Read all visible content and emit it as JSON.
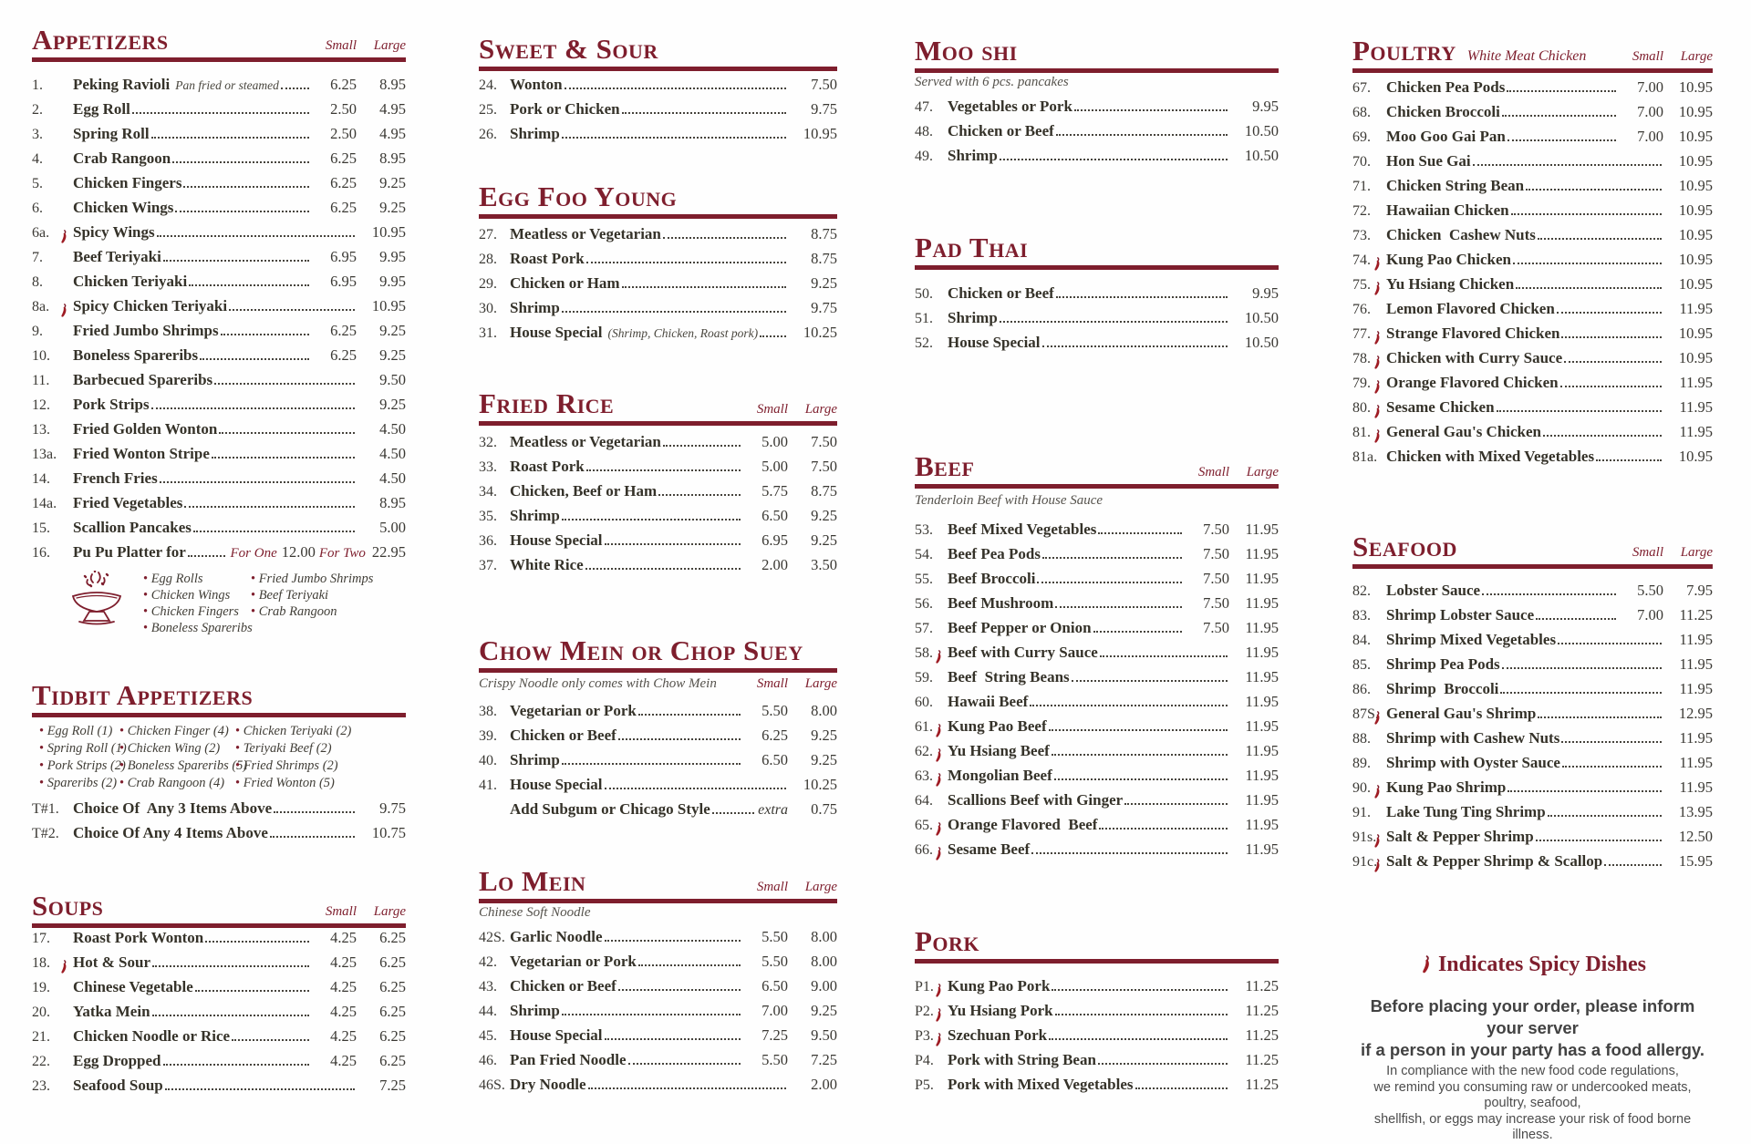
{
  "menu": {
    "sections": {
      "appetizers": {
        "title": "Appetizers",
        "labels_in": "header",
        "size_labels": [
          "Small",
          "Large"
        ],
        "items": [
          {
            "num": "1.",
            "name": "Peking Ravioli",
            "note": "Pan fried or steamed",
            "small": "6.25",
            "price": "8.95"
          },
          {
            "num": "2.",
            "name": "Egg Roll",
            "small": "2.50",
            "price": "4.95"
          },
          {
            "num": "3.",
            "name": "Spring Roll",
            "small": "2.50",
            "price": "4.95"
          },
          {
            "num": "4.",
            "name": "Crab Rangoon",
            "small": "6.25",
            "price": "8.95"
          },
          {
            "num": "5.",
            "name": "Chicken Fingers",
            "small": "6.25",
            "price": "9.25"
          },
          {
            "num": "6.",
            "name": "Chicken Wings",
            "small": "6.25",
            "price": "9.25"
          },
          {
            "num": "6a.",
            "spicy": true,
            "name": "Spicy Wings",
            "price": "10.95"
          },
          {
            "num": "7.",
            "name": "Beef Teriyaki",
            "small": "6.95",
            "price": "9.95"
          },
          {
            "num": "8.",
            "name": "Chicken Teriyaki",
            "small": "6.95",
            "price": "9.95"
          },
          {
            "num": "8a.",
            "spicy": true,
            "name": "Spicy Chicken Teriyaki",
            "price": "10.95"
          },
          {
            "num": "9.",
            "name": "Fried Jumbo Shrimps",
            "small": "6.25",
            "price": "9.25"
          },
          {
            "num": "10.",
            "name": "Boneless Spareribs",
            "small": "6.25",
            "price": "9.25"
          },
          {
            "num": "11.",
            "name": "Barbecued Spareribs",
            "price": "9.50"
          },
          {
            "num": "12.",
            "name": "Pork Strips",
            "price": "9.25"
          },
          {
            "num": "13.",
            "name": "Fried Golden Wonton",
            "price": "4.50"
          },
          {
            "num": "13a.",
            "name": "Fried Wonton Stripe",
            "price": "4.50"
          },
          {
            "num": "14.",
            "name": "French Fries",
            "price": "4.50"
          },
          {
            "num": "14a.",
            "name": "Fried Vegetables",
            "price": "8.95"
          },
          {
            "num": "15.",
            "name": "Scallion Pancakes",
            "price": "5.00"
          },
          {
            "num": "16.",
            "type": "pupu",
            "name": "Pu Pu Platter for",
            "for_one_label": "For One",
            "for_one_price": "12.00",
            "for_two_label": "For Two",
            "for_two_price": "22.95"
          }
        ],
        "pupu_bullets": {
          "col1": [
            "Egg Rolls",
            "Chicken Wings",
            "Chicken Fingers",
            "Boneless Spareribs"
          ],
          "col2": [
            "Fried Jumbo Shrimps",
            "Beef Teriyaki",
            "Crab Rangoon"
          ]
        }
      },
      "tidbit": {
        "title": "Tidbit Appetizers",
        "bullet_cols": [
          [
            "Egg Roll (1)",
            "Spring Roll (1)",
            "Pork Strips (2)",
            "Spareribs (2)"
          ],
          [
            "Chicken Finger (4)",
            "Chicken Wing (2)",
            "Boneless Spareribs (5)",
            "Crab Rangoon (4)"
          ],
          [
            "Chicken Teriyaki (2)",
            "Teriyaki Beef (2)",
            "Fried Shrimps (2)",
            "Fried Wonton (5)"
          ]
        ],
        "items": [
          {
            "num": "T#1.",
            "name": "Choice Of  Any 3 Items Above",
            "price": "9.75"
          },
          {
            "num": "T#2.",
            "name": "Choice Of Any 4 Items Above",
            "price": "10.75"
          }
        ]
      },
      "soups": {
        "title": "Soups",
        "labels_in": "header",
        "size_labels": [
          "Small",
          "Large"
        ],
        "items": [
          {
            "num": "17.",
            "name": "Roast Pork Wonton",
            "small": "4.25",
            "price": "6.25"
          },
          {
            "num": "18.",
            "spicy": true,
            "name": "Hot & Sour",
            "small": "4.25",
            "price": "6.25"
          },
          {
            "num": "19.",
            "name": "Chinese Vegetable",
            "small": "4.25",
            "price": "6.25"
          },
          {
            "num": "20.",
            "name": "Yatka Mein",
            "small": "4.25",
            "price": "6.25"
          },
          {
            "num": "21.",
            "name": "Chicken Noodle or Rice",
            "small": "4.25",
            "price": "6.25"
          },
          {
            "num": "22.",
            "name": "Egg Dropped",
            "small": "4.25",
            "price": "6.25"
          },
          {
            "num": "23.",
            "name": "Seafood Soup",
            "price": "7.25"
          }
        ]
      },
      "sweet_sour": {
        "title": "Sweet & Sour",
        "items": [
          {
            "num": "24.",
            "name": "Wonton",
            "price": "7.50"
          },
          {
            "num": "25.",
            "name": "Pork or Chicken",
            "price": "9.75"
          },
          {
            "num": "26.",
            "name": "Shrimp",
            "price": "10.95"
          }
        ]
      },
      "egg_foo_young": {
        "title": "Egg Foo Young",
        "items": [
          {
            "num": "27.",
            "name": "Meatless or Vegetarian",
            "price": "8.75"
          },
          {
            "num": "28.",
            "name": "Roast Pork",
            "price": "8.75"
          },
          {
            "num": "29.",
            "name": "Chicken or Ham",
            "price": "9.25"
          },
          {
            "num": "30.",
            "name": "Shrimp",
            "price": "9.75"
          },
          {
            "num": "31.",
            "name": "House Special",
            "note": "(Shrimp, Chicken, Roast pork)",
            "price": "10.25"
          }
        ]
      },
      "fried_rice": {
        "title": "Fried Rice",
        "labels_in": "header",
        "size_labels": [
          "Small",
          "Large"
        ],
        "items": [
          {
            "num": "32.",
            "name": "Meatless or Vegetarian",
            "small": "5.00",
            "price": "7.50"
          },
          {
            "num": "33.",
            "name": "Roast Pork",
            "small": "5.00",
            "price": "7.50"
          },
          {
            "num": "34.",
            "name": "Chicken, Beef or Ham",
            "small": "5.75",
            "price": "8.75"
          },
          {
            "num": "35.",
            "name": "Shrimp",
            "small": "6.50",
            "price": "9.25"
          },
          {
            "num": "36.",
            "name": "House Special",
            "small": "6.95",
            "price": "9.25"
          },
          {
            "num": "37.",
            "name": "White Rice",
            "small": "2.00",
            "price": "3.50"
          }
        ]
      },
      "chow_mein": {
        "title": "Chow Mein or Chop Suey",
        "labels_in": "note",
        "size_labels": [
          "Small",
          "Large"
        ],
        "note": "Crispy Noodle only comes with Chow Mein",
        "items": [
          {
            "num": "38.",
            "name": "Vegetarian or Pork",
            "small": "5.50",
            "price": "8.00"
          },
          {
            "num": "39.",
            "name": "Chicken or Beef",
            "small": "6.25",
            "price": "9.25"
          },
          {
            "num": "40.",
            "name": "Shrimp",
            "small": "6.50",
            "price": "9.25"
          },
          {
            "num": "41.",
            "name": "House Special",
            "price": "10.25"
          },
          {
            "num": "",
            "name": "Add Subgum or Chicago Style",
            "tail": "extra",
            "price": "0.75"
          }
        ]
      },
      "lo_mein": {
        "title": "Lo Mein",
        "labels_in": "header",
        "size_labels": [
          "Small",
          "Large"
        ],
        "note": "Chinese Soft Noodle",
        "items": [
          {
            "num": "42S.",
            "name": "Garlic Noodle",
            "small": "5.50",
            "price": "8.00"
          },
          {
            "num": "42.",
            "name": "Vegetarian or Pork",
            "small": "5.50",
            "price": "8.00"
          },
          {
            "num": "43.",
            "name": "Chicken or Beef",
            "small": "6.50",
            "price": "9.00"
          },
          {
            "num": "44.",
            "name": "Shrimp",
            "small": "7.00",
            "price": "9.25"
          },
          {
            "num": "45.",
            "name": "House Special",
            "small": "7.25",
            "price": "9.50"
          },
          {
            "num": "46.",
            "name": "Pan Fried Noodle",
            "small": "5.50",
            "price": "7.25"
          },
          {
            "num": "46S.",
            "name": "Dry Noodle",
            "price": "2.00"
          }
        ]
      },
      "moo_shi": {
        "title": "Moo shi",
        "note": "Served with 6 pcs. pancakes",
        "items": [
          {
            "num": "47.",
            "name": "Vegetables or Pork",
            "price": "9.95"
          },
          {
            "num": "48.",
            "name": "Chicken or Beef",
            "price": "10.50"
          },
          {
            "num": "49.",
            "name": "Shrimp",
            "price": "10.50"
          }
        ]
      },
      "pad_thai": {
        "title": "Pad Thai",
        "items": [
          {
            "num": "50.",
            "name": "Chicken or Beef",
            "price": "9.95"
          },
          {
            "num": "51.",
            "name": "Shrimp",
            "price": "10.50"
          },
          {
            "num": "52.",
            "name": "House Special",
            "price": "10.50"
          }
        ]
      },
      "beef": {
        "title": "Beef",
        "labels_in": "header",
        "size_labels": [
          "Small",
          "Large"
        ],
        "note": "Tenderloin Beef with House Sauce",
        "items": [
          {
            "num": "53.",
            "name": "Beef Mixed Vegetables",
            "small": "7.50",
            "price": "11.95"
          },
          {
            "num": "54.",
            "name": "Beef Pea Pods",
            "small": "7.50",
            "price": "11.95"
          },
          {
            "num": "55.",
            "name": "Beef Broccoli",
            "small": "7.50",
            "price": "11.95"
          },
          {
            "num": "56.",
            "name": "Beef Mushroom",
            "small": "7.50",
            "price": "11.95"
          },
          {
            "num": "57.",
            "name": "Beef Pepper or Onion",
            "small": "7.50",
            "price": "11.95"
          },
          {
            "num": "58.",
            "spicy": true,
            "name": "Beef with Curry Sauce",
            "price": "11.95"
          },
          {
            "num": "59.",
            "name": "Beef  String Beans",
            "price": "11.95"
          },
          {
            "num": "60.",
            "name": "Hawaii Beef",
            "price": "11.95"
          },
          {
            "num": "61.",
            "spicy": true,
            "name": "Kung Pao Beef",
            "price": "11.95"
          },
          {
            "num": "62.",
            "spicy": true,
            "name": "Yu Hsiang Beef",
            "price": "11.95"
          },
          {
            "num": "63.",
            "spicy": true,
            "name": "Mongolian Beef",
            "price": "11.95"
          },
          {
            "num": "64.",
            "name": "Scallions Beef with Ginger",
            "price": "11.95"
          },
          {
            "num": "65.",
            "spicy": true,
            "name": "Orange Flavored  Beef",
            "price": "11.95"
          },
          {
            "num": "66.",
            "spicy": true,
            "name": "Sesame Beef",
            "price": "11.95"
          }
        ]
      },
      "pork": {
        "title": "Pork",
        "items": [
          {
            "num": "P1.",
            "spicy": true,
            "name": "Kung Pao Pork",
            "price": "11.25"
          },
          {
            "num": "P2.",
            "spicy": true,
            "name": "Yu Hsiang Pork",
            "price": "11.25"
          },
          {
            "num": "P3.",
            "spicy": true,
            "name": "Szechuan Pork",
            "price": "11.25"
          },
          {
            "num": "P4.",
            "name": "Pork with String Bean",
            "price": "11.25"
          },
          {
            "num": "P5.",
            "name": "Pork with Mixed Vegetables",
            "price": "11.25"
          }
        ]
      },
      "poultry": {
        "title": "Poultry",
        "header_note": "White Meat Chicken",
        "labels_in": "header",
        "size_labels": [
          "Small",
          "Large"
        ],
        "items": [
          {
            "num": "67.",
            "name": "Chicken Pea Pods",
            "small": "7.00",
            "price": "10.95"
          },
          {
            "num": "68.",
            "name": "Chicken Broccoli",
            "small": "7.00",
            "price": "10.95"
          },
          {
            "num": "69.",
            "name": "Moo Goo Gai Pan",
            "small": "7.00",
            "price": "10.95"
          },
          {
            "num": "70.",
            "name": "Hon Sue Gai",
            "price": "10.95"
          },
          {
            "num": "71.",
            "name": "Chicken String Bean",
            "price": "10.95"
          },
          {
            "num": "72.",
            "name": "Hawaiian Chicken",
            "price": "10.95"
          },
          {
            "num": "73.",
            "name": "Chicken  Cashew Nuts",
            "price": "10.95"
          },
          {
            "num": "74.",
            "spicy": true,
            "name": "Kung Pao Chicken",
            "price": "10.95"
          },
          {
            "num": "75.",
            "spicy": true,
            "name": "Yu Hsiang Chicken",
            "price": "10.95"
          },
          {
            "num": "76.",
            "name": "Lemon Flavored Chicken",
            "price": "11.95"
          },
          {
            "num": "77.",
            "spicy": true,
            "name": "Strange Flavored Chicken",
            "price": "10.95"
          },
          {
            "num": "78.",
            "spicy": true,
            "name": "Chicken with Curry Sauce",
            "price": "10.95"
          },
          {
            "num": "79.",
            "spicy": true,
            "name": "Orange Flavored Chicken",
            "price": "11.95"
          },
          {
            "num": "80.",
            "spicy": true,
            "name": "Sesame Chicken",
            "price": "11.95"
          },
          {
            "num": "81.",
            "spicy": true,
            "name": "General Gau's Chicken",
            "price": "11.95"
          },
          {
            "num": "81a.",
            "name": "Chicken with Mixed Vegetables",
            "price": "10.95"
          }
        ]
      },
      "seafood": {
        "title": "Seafood",
        "labels_in": "header",
        "size_labels": [
          "Small",
          "Large"
        ],
        "items": [
          {
            "num": "82.",
            "name": "Lobster Sauce",
            "small": "5.50",
            "price": "7.95"
          },
          {
            "num": "83.",
            "name": "Shrimp Lobster Sauce",
            "small": "7.00",
            "price": "11.25"
          },
          {
            "num": "84.",
            "name": "Shrimp Mixed Vegetables",
            "price": "11.95"
          },
          {
            "num": "85.",
            "name": "Shrimp Pea Pods",
            "price": "11.95"
          },
          {
            "num": "86.",
            "name": "Shrimp  Broccoli",
            "price": "11.95"
          },
          {
            "num": "87S.",
            "spicy": true,
            "name": "General Gau's Shrimp",
            "price": "12.95"
          },
          {
            "num": "88.",
            "name": "Shrimp with Cashew Nuts",
            "price": "11.95"
          },
          {
            "num": "89.",
            "name": "Shrimp with Oyster Sauce",
            "price": "11.95"
          },
          {
            "num": "90.",
            "spicy": true,
            "name": "Kung Pao Shrimp",
            "price": "11.95"
          },
          {
            "num": "91.",
            "name": "Lake Tung Ting Shrimp",
            "price": "13.95"
          },
          {
            "num": "91s.",
            "spicy": true,
            "name": "Salt & Pepper Shrimp",
            "price": "12.50"
          },
          {
            "num": "91c.",
            "spicy": true,
            "name": "Salt & Pepper Shrimp & Scallop",
            "price": "15.95"
          }
        ]
      }
    },
    "footer": {
      "spicy_note": "Indicates Spicy Dishes",
      "allergy_line1": "Before placing your order, please inform your server",
      "allergy_line2": "if a person in your party has a food allergy.",
      "compliance_line1": "In compliance with the new food code regulations,",
      "compliance_line2": "we remind you consuming raw or undercooked meats, poultry, seafood,",
      "compliance_line3": "shellfish, or eggs may increase your risk of food borne illness."
    }
  }
}
